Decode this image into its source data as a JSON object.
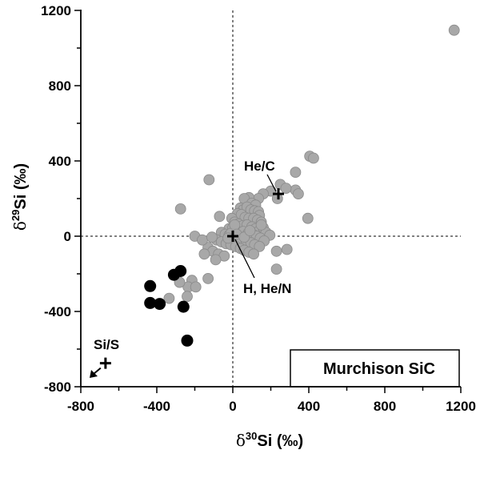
{
  "chart_data": {
    "type": "scatter",
    "xlabel": {
      "delta": "δ",
      "sup": "30",
      "rest": "Si (‰)"
    },
    "ylabel": {
      "delta": "δ",
      "sup": "29",
      "rest": "Si (‰)"
    },
    "xlim": [
      -800,
      1200
    ],
    "ylim": [
      -800,
      1200
    ],
    "xticks": [
      -800,
      -400,
      0,
      400,
      800,
      1200
    ],
    "yticks": [
      -800,
      -400,
      0,
      400,
      800,
      1200
    ],
    "xtick_labels": [
      "-800",
      "-400",
      "0",
      "400",
      "800",
      "1200"
    ],
    "ytick_labels": [
      "-800",
      "-400",
      "0",
      "400",
      "800",
      "1200"
    ],
    "reference_lines": {
      "x": 0,
      "y": 0,
      "style": "dashed"
    },
    "inset_label": "Murchison SiC",
    "series": [
      {
        "color": "#a8a8a8",
        "points": [
          [
            1165,
            1095
          ],
          [
            405,
            425
          ],
          [
            425,
            415
          ],
          [
            330,
            340
          ],
          [
            330,
            245
          ],
          [
            345,
            225
          ],
          [
            395,
            95
          ],
          [
            250,
            275
          ],
          [
            235,
            200
          ],
          [
            280,
            255
          ],
          [
            -125,
            300
          ],
          [
            -275,
            145
          ],
          [
            200,
            240
          ],
          [
            160,
            225
          ],
          [
            135,
            200
          ],
          [
            85,
            205
          ],
          [
            60,
            200
          ],
          [
            100,
            175
          ],
          [
            120,
            165
          ],
          [
            40,
            150
          ],
          [
            55,
            140
          ],
          [
            75,
            155
          ],
          [
            95,
            140
          ],
          [
            115,
            135
          ],
          [
            135,
            130
          ],
          [
            140,
            110
          ],
          [
            25,
            120
          ],
          [
            45,
            115
          ],
          [
            65,
            100
          ],
          [
            85,
            95
          ],
          [
            110,
            95
          ],
          [
            130,
            85
          ],
          [
            150,
            75
          ],
          [
            -70,
            105
          ],
          [
            -5,
            95
          ],
          [
            10,
            75
          ],
          [
            30,
            65
          ],
          [
            50,
            55
          ],
          [
            75,
            60
          ],
          [
            100,
            50
          ],
          [
            120,
            40
          ],
          [
            140,
            30
          ],
          [
            160,
            45
          ],
          [
            175,
            20
          ],
          [
            195,
            5
          ],
          [
            -20,
            40
          ],
          [
            0,
            45
          ],
          [
            15,
            30
          ],
          [
            35,
            20
          ],
          [
            55,
            25
          ],
          [
            80,
            15
          ],
          [
            105,
            10
          ],
          [
            125,
            0
          ],
          [
            145,
            -10
          ],
          [
            165,
            -25
          ],
          [
            -60,
            20
          ],
          [
            -40,
            10
          ],
          [
            -20,
            5
          ],
          [
            5,
            -5
          ],
          [
            25,
            -15
          ],
          [
            45,
            -20
          ],
          [
            70,
            -25
          ],
          [
            95,
            -35
          ],
          [
            115,
            -45
          ],
          [
            140,
            -55
          ],
          [
            -85,
            -20
          ],
          [
            -60,
            -30
          ],
          [
            -35,
            -40
          ],
          [
            -10,
            -45
          ],
          [
            15,
            -55
          ],
          [
            40,
            -65
          ],
          [
            60,
            -75
          ],
          [
            85,
            -85
          ],
          [
            110,
            -95
          ],
          [
            -130,
            -60
          ],
          [
            -105,
            -80
          ],
          [
            -75,
            -95
          ],
          [
            -45,
            -105
          ],
          [
            230,
            -80
          ],
          [
            285,
            -70
          ],
          [
            -200,
            0
          ],
          [
            -160,
            -20
          ],
          [
            -150,
            -95
          ],
          [
            -90,
            -125
          ],
          [
            -215,
            -235
          ],
          [
            -235,
            -270
          ],
          [
            -280,
            -245
          ],
          [
            -130,
            -225
          ],
          [
            -195,
            -270
          ],
          [
            230,
            -175
          ],
          [
            -240,
            -320
          ],
          [
            -335,
            -330
          ],
          [
            -10,
            15
          ],
          [
            10,
            60
          ],
          [
            -25,
            -10
          ],
          [
            20,
            10
          ],
          [
            60,
            -5
          ],
          [
            90,
            30
          ],
          [
            150,
            60
          ],
          [
            -110,
            -5
          ]
        ]
      },
      {
        "color": "#000000",
        "points": [
          [
            -275,
            -185
          ],
          [
            -310,
            -205
          ],
          [
            -435,
            -265
          ],
          [
            -435,
            -355
          ],
          [
            -385,
            -360
          ],
          [
            -260,
            -375
          ],
          [
            -240,
            -555
          ]
        ]
      }
    ],
    "markers": [
      {
        "label": "He/C",
        "x": 240,
        "y": 225
      },
      {
        "label": "H, He/N",
        "x": 0,
        "y": 0
      },
      {
        "label": "Si/S",
        "x": -670,
        "y": -675
      }
    ]
  }
}
